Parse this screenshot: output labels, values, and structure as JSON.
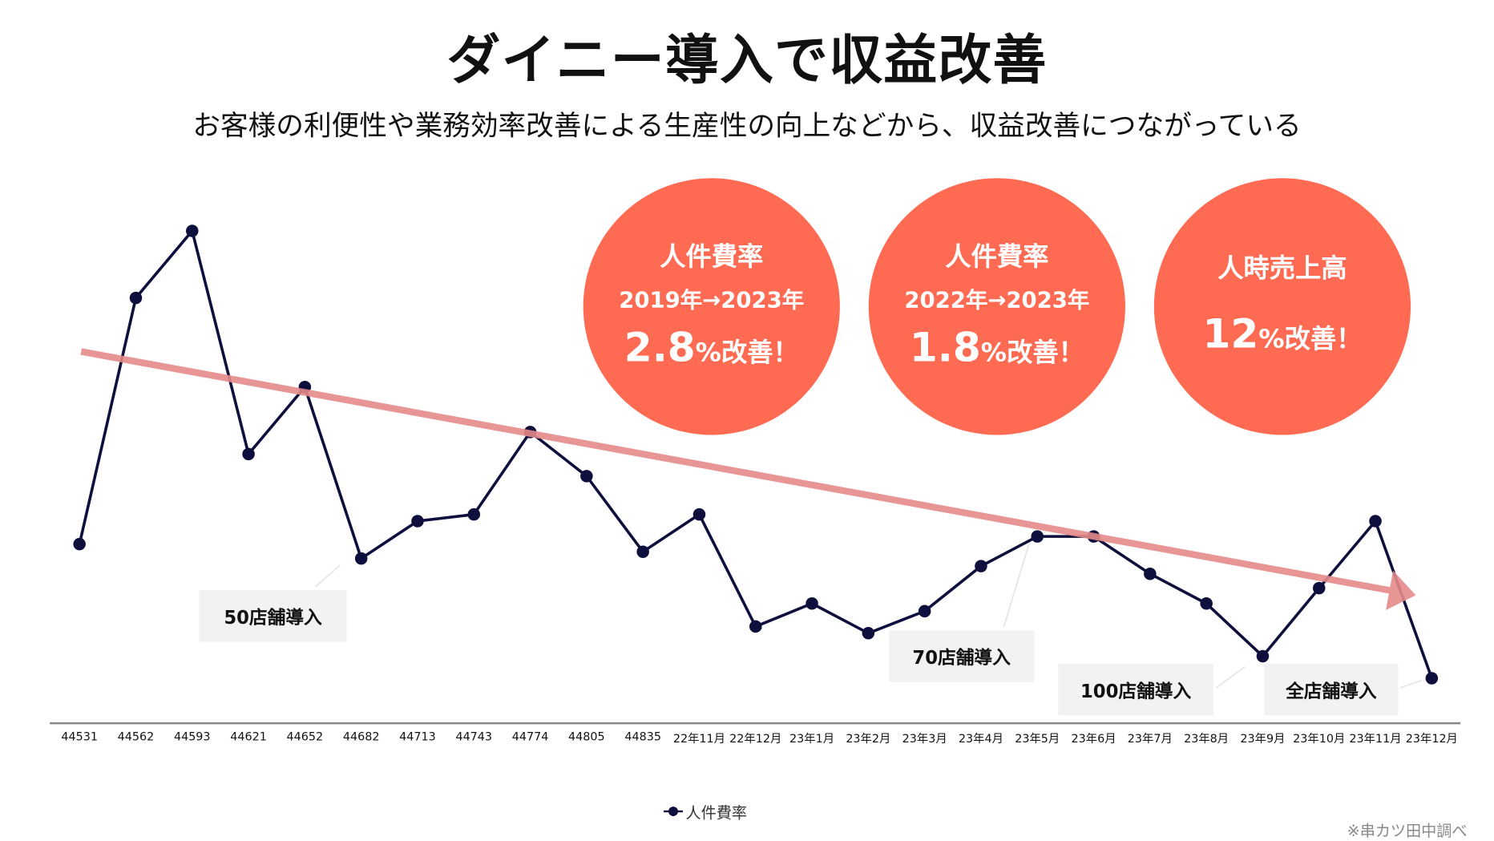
{
  "title": "ダイニー導入で収益改善",
  "subtitle": "お客様の利便性や業務効率改善による生産性の向上などから、収益改善につながっている",
  "highlights": [
    {
      "line1": "人件費率",
      "line2": "2019年→2023年",
      "value": "2.8",
      "suffix": "%改善！"
    },
    {
      "line1": "人件費率",
      "line2": "2022年→2023年",
      "value": "1.8",
      "suffix": "%改善！"
    },
    {
      "line1": "人時売上高",
      "value": "12",
      "suffix": "%改善！"
    }
  ],
  "annotations": [
    "50店舗導入",
    "70店舗導入",
    "100店舗導入",
    "全店舗導入"
  ],
  "source_note": "※串カツ田中調べ",
  "colors": {
    "line": "#0f0f3d",
    "trend": "#E58A8A",
    "circle": "#FF6A52"
  },
  "chart_data": {
    "type": "line",
    "title": "",
    "xlabel": "",
    "ylabel": "",
    "y_axis_shown": false,
    "grid": false,
    "legend": {
      "position": "bottom-center",
      "entries": [
        "人件費率"
      ]
    },
    "categories": [
      "44531",
      "44562",
      "44593",
      "44621",
      "44652",
      "44682",
      "44713",
      "44743",
      "44774",
      "44805",
      "44835",
      "22年11月",
      "22年12月",
      "23年1月",
      "23年2月",
      "23年3月",
      "23年4月",
      "23年5月",
      "23年6月",
      "23年7月",
      "23年8月",
      "23年9月",
      "23年10月",
      "23年11月",
      "23年12月"
    ],
    "series": [
      {
        "name": "人件費率",
        "values": [
          19.2,
          44.9,
          51.9,
          28.6,
          35.6,
          17.7,
          21.6,
          22.3,
          30.9,
          26.3,
          18.4,
          22.3,
          10.6,
          13.0,
          9.9,
          12.2,
          16.9,
          20.0,
          20.0,
          16.1,
          13.0,
          7.5,
          14.6,
          21.6,
          5.2
        ]
      }
    ],
    "ylim": [
      0,
      60
    ],
    "trend": {
      "start_index": 0.03,
      "start_value": 39.3,
      "end_index": 23.6,
      "end_value": 14.0
    },
    "annotation_indices": [
      5,
      17,
      21,
      24
    ]
  }
}
